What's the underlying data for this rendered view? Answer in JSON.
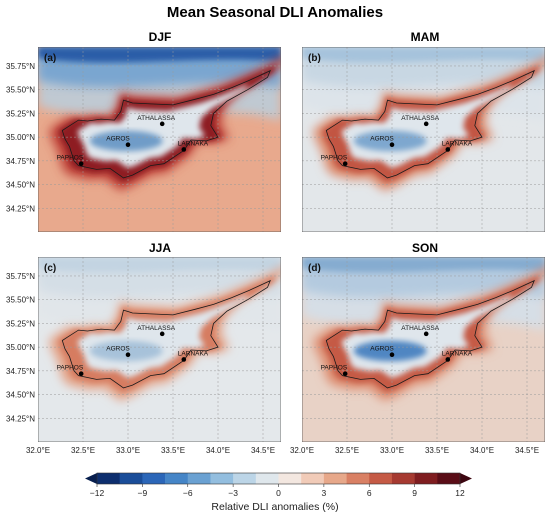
{
  "figure": {
    "title": "Mean Seasonal DLI Anomalies"
  },
  "panels": [
    {
      "season": "DJF",
      "label": "(a)",
      "palette": "djf"
    },
    {
      "season": "MAM",
      "label": "(b)",
      "palette": "mam"
    },
    {
      "season": "JJA",
      "label": "(c)",
      "palette": "jja"
    },
    {
      "season": "SON",
      "label": "(d)",
      "palette": "son"
    }
  ],
  "axes": {
    "lat_ticks": [
      "35.75°N",
      "35.50°N",
      "35.25°N",
      "35.00°N",
      "34.75°N",
      "34.50°N",
      "34.25°N"
    ],
    "lon_ticks": [
      "32.0°E",
      "32.5°E",
      "33.0°E",
      "33.5°E",
      "34.0°E",
      "34.5°E"
    ]
  },
  "stations": [
    {
      "name": "ATHALASSA"
    },
    {
      "name": "AGROS"
    },
    {
      "name": "LARNAKA"
    },
    {
      "name": "PAPHOS"
    }
  ],
  "colorbar": {
    "ticks": [
      "−12",
      "−9",
      "−6",
      "−3",
      "0",
      "3",
      "6",
      "9",
      "12"
    ],
    "label": "Relative DLI anomalies (%)",
    "colors": [
      "#0d2e6e",
      "#1a4d99",
      "#2b66b8",
      "#4585c7",
      "#6aa1d2",
      "#93bedf",
      "#bcd5e7",
      "#dfe7ec",
      "#f3e7e0",
      "#f1cbb8",
      "#e7a88a",
      "#d98064",
      "#c55a45",
      "#a63a31",
      "#7f1d20",
      "#5a0d17"
    ]
  },
  "chart_data": {
    "type": "heatmap",
    "title": "Mean Seasonal DLI Anomalies",
    "panels": [
      "DJF",
      "MAM",
      "JJA",
      "SON"
    ],
    "xlim": [
      32.0,
      34.7
    ],
    "ylim": [
      34.0,
      35.95
    ],
    "colorbar_range": [
      -12,
      12
    ],
    "colorbar_label": "Relative DLI anomalies (%)",
    "stations": [
      {
        "name": "ATHALASSA",
        "lon": 33.38,
        "lat": 35.14
      },
      {
        "name": "AGROS",
        "lon": 33.0,
        "lat": 34.92
      },
      {
        "name": "LARNAKA",
        "lon": 33.62,
        "lat": 34.87
      },
      {
        "name": "PAPHOS",
        "lon": 32.48,
        "lat": 34.72
      }
    ]
  }
}
